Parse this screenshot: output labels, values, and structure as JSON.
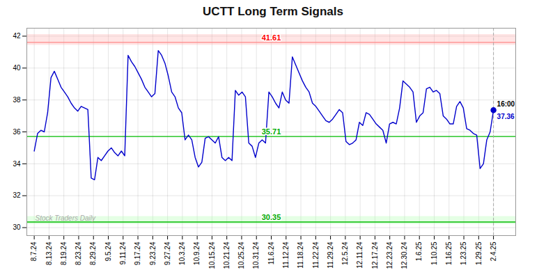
{
  "chart_data": {
    "type": "line",
    "title": "UCTT Long Term Signals",
    "color": "#0000cc",
    "grid": true,
    "xlim": [
      -0.5,
      32.5
    ],
    "xticks": [
      {
        "value": 0,
        "label": "8.7.24"
      },
      {
        "value": 1,
        "label": "8.13.24"
      },
      {
        "value": 2,
        "label": "8.19.24"
      },
      {
        "value": 3,
        "label": "8.23.24"
      },
      {
        "value": 4,
        "label": "8.29.24"
      },
      {
        "value": 5,
        "label": "9.5.24"
      },
      {
        "value": 6,
        "label": "9.11.24"
      },
      {
        "value": 7,
        "label": "9.17.24"
      },
      {
        "value": 8,
        "label": "9.23.24"
      },
      {
        "value": 9,
        "label": "9.27.24"
      },
      {
        "value": 10,
        "label": "10.3.24"
      },
      {
        "value": 11,
        "label": "10.9.24"
      },
      {
        "value": 12,
        "label": "10.15.24"
      },
      {
        "value": 13,
        "label": "10.21.24"
      },
      {
        "value": 14,
        "label": "10.25.24"
      },
      {
        "value": 15,
        "label": "10.31.24"
      },
      {
        "value": 16,
        "label": "11.6.24"
      },
      {
        "value": 17,
        "label": "11.12.24"
      },
      {
        "value": 18,
        "label": "11.18.24"
      },
      {
        "value": 19,
        "label": "11.22.24"
      },
      {
        "value": 20,
        "label": "11.29.24"
      },
      {
        "value": 21,
        "label": "12.5.24"
      },
      {
        "value": 22,
        "label": "12.11.24"
      },
      {
        "value": 23,
        "label": "12.17.24"
      },
      {
        "value": 24,
        "label": "12.23.24"
      },
      {
        "value": 25,
        "label": "12.30.24"
      },
      {
        "value": 26,
        "label": "1.6.25"
      },
      {
        "value": 27,
        "label": "1.10.25"
      },
      {
        "value": 28,
        "label": "1.16.25"
      },
      {
        "value": 29,
        "label": "1.23.25"
      },
      {
        "value": 30,
        "label": "1.29.25"
      },
      {
        "value": 31,
        "label": "2.4.25"
      }
    ],
    "ylim": [
      29.5,
      42.5
    ],
    "yticks": [
      30,
      32,
      34,
      36,
      38,
      40,
      42
    ],
    "x": [
      0,
      0.2263,
      0.4526,
      0.6788,
      0.9051,
      1.1314,
      1.3577,
      1.5839,
      1.8102,
      2.0365,
      2.2628,
      2.4891,
      2.7153,
      2.9416,
      3.1679,
      3.3942,
      3.6204,
      3.8467,
      4.073,
      4.2993,
      4.5255,
      4.7518,
      4.9781,
      5.2044,
      5.4307,
      5.6569,
      5.8832,
      6.1095,
      6.3358,
      6.562,
      6.7883,
      7.0146,
      7.2409,
      7.4672,
      7.6934,
      7.9197,
      8.146,
      8.3723,
      8.5985,
      8.8248,
      9.0511,
      9.2774,
      9.5036,
      9.7299,
      9.9562,
      10.1825,
      10.4088,
      10.635,
      10.8613,
      11.0876,
      11.3139,
      11.5401,
      11.7664,
      11.9927,
      12.219,
      12.4453,
      12.6715,
      12.8978,
      13.1241,
      13.3504,
      13.5766,
      13.8029,
      14.0292,
      14.2555,
      14.4818,
      14.708,
      14.9343,
      15.1606,
      15.3869,
      15.6131,
      15.8394,
      16.0657,
      16.292,
      16.5182,
      16.7445,
      16.9708,
      17.1971,
      17.4234,
      17.6496,
      17.8759,
      18.1022,
      18.3285,
      18.5547,
      18.781,
      19.0073,
      19.2336,
      19.4599,
      19.6861,
      19.9124,
      20.1387,
      20.365,
      20.5912,
      20.8175,
      21.0438,
      21.2701,
      21.4964,
      21.7226,
      21.9489,
      22.1752,
      22.4015,
      22.6277,
      22.854,
      23.0803,
      23.3066,
      23.5328,
      23.7591,
      23.9854,
      24.2117,
      24.438,
      24.6642,
      24.8905,
      25.1168,
      25.3431,
      25.5693,
      25.7956,
      26.0219,
      26.2482,
      26.4745,
      26.7007,
      26.927,
      27.1533,
      27.3796,
      27.6058,
      27.8321,
      28.0584,
      28.2847,
      28.5109,
      28.7372,
      28.9635,
      29.1898,
      29.4161,
      29.6423,
      29.8686,
      30.0949,
      30.3212,
      30.5474,
      30.7737,
      31
    ],
    "values": [
      34.8,
      35.9,
      36.1,
      36.0,
      37.2,
      39.4,
      39.8,
      39.3,
      38.8,
      38.5,
      38.2,
      37.8,
      37.5,
      37.3,
      37.6,
      37.5,
      37.4,
      33.1,
      33.0,
      34.4,
      34.2,
      34.5,
      34.8,
      35.0,
      34.7,
      34.5,
      34.8,
      34.5,
      40.8,
      40.4,
      40.1,
      39.7,
      39.3,
      38.8,
      38.5,
      38.2,
      38.4,
      41.1,
      40.8,
      40.3,
      39.5,
      38.5,
      38.2,
      37.5,
      37.2,
      35.5,
      35.8,
      35.5,
      34.4,
      33.8,
      34.1,
      35.6,
      35.7,
      35.5,
      35.3,
      35.7,
      34.4,
      34.2,
      34.4,
      34.2,
      38.6,
      38.3,
      38.5,
      38.2,
      35.3,
      35.1,
      34.4,
      35.3,
      35.5,
      35.3,
      38.5,
      38.2,
      37.8,
      37.5,
      38.5,
      38.0,
      37.8,
      40.7,
      40.2,
      39.7,
      39.2,
      38.8,
      38.5,
      37.8,
      37.6,
      37.3,
      37.0,
      36.7,
      36.6,
      36.8,
      37.1,
      37.4,
      37.2,
      35.4,
      35.2,
      35.3,
      35.5,
      36.6,
      36.4,
      37.2,
      37.1,
      36.8,
      36.5,
      36.3,
      36.1,
      35.3,
      36.5,
      36.6,
      36.5,
      37.5,
      39.2,
      39.0,
      38.8,
      38.5,
      36.6,
      37.0,
      37.2,
      38.7,
      38.8,
      38.5,
      38.6,
      38.4,
      37.0,
      36.8,
      36.5,
      36.5,
      37.6,
      37.9,
      37.5,
      36.2,
      36.1,
      35.9,
      35.8,
      33.7,
      34.0,
      35.5,
      36.0,
      37.36
    ],
    "hlines": [
      {
        "y": 41.61,
        "label": "41.61",
        "color": "#ff8888",
        "label_color": "#ff0000"
      },
      {
        "y": 35.71,
        "label": "35.71",
        "color": "#00bb00",
        "label_color": "#00aa00"
      },
      {
        "y": 30.35,
        "label": "30.35",
        "color": "#00bb00",
        "label_color": "#00aa00"
      }
    ],
    "bands": [
      {
        "y1": 41.43,
        "y2": 42.11,
        "color": "#ffaaaa"
      },
      {
        "y1": 30.2,
        "y2": 30.7,
        "color": "#aaffaa"
      }
    ],
    "last_point": {
      "marker": "circle",
      "color": "#0000cc",
      "line_style": "dashed",
      "labels": [
        {
          "text": "16:00",
          "color": "#000000"
        },
        {
          "text": "37.36",
          "color": "#0000cc"
        }
      ]
    },
    "watermark": "Stock Traders Daily"
  }
}
